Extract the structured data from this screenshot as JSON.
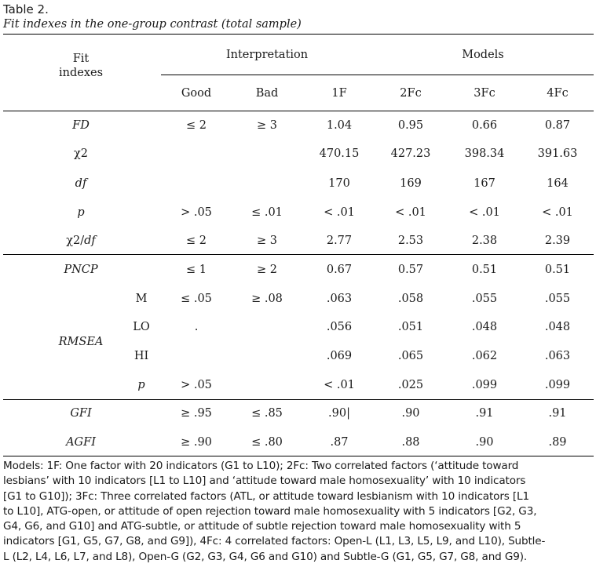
{
  "caption": {
    "title": "Table 2.",
    "subtitle": "Fit indexes in the one-group contrast (total sample)"
  },
  "header": {
    "fit_indexes_line1": "Fit",
    "fit_indexes_line2": "indexes",
    "interpretation": "Interpretation",
    "models": "Models",
    "good": "Good",
    "bad": "Bad",
    "m1": "1F",
    "m2": "2Fc",
    "m3": "3Fc",
    "m4": "4Fc"
  },
  "rows": {
    "fd": {
      "label": "FD",
      "good": "≤ 2",
      "bad": "≥ 3",
      "v1": "1.04",
      "v2": "0.95",
      "v3": "0.66",
      "v4": "0.87"
    },
    "chi2": {
      "label": "χ2",
      "good": "",
      "bad": "",
      "v1": "470.15",
      "v2": "427.23",
      "v3": "398.34",
      "v4": "391.63"
    },
    "df": {
      "label": "df",
      "good": "",
      "bad": "",
      "v1": "170",
      "v2": "169",
      "v3": "167",
      "v4": "164"
    },
    "p": {
      "label": "p",
      "good": "> .05",
      "bad": "≤ .01",
      "v1": "< .01",
      "v2": "< .01",
      "v3": "< .01",
      "v4": "< .01"
    },
    "chi2df": {
      "label_a": "χ2/",
      "label_b": "df",
      "good": "≤ 2",
      "bad": "≥ 3",
      "v1": "2.77",
      "v2": "2.53",
      "v3": "2.38",
      "v4": "2.39"
    },
    "pncp": {
      "label": "PNCP",
      "good": "≤ 1",
      "bad": "≥ 2",
      "v1": "0.67",
      "v2": "0.57",
      "v3": "0.51",
      "v4": "0.51"
    },
    "rmsea_label": "RMSEA",
    "rmsea_m": {
      "label": "M",
      "good": "≤ .05",
      "bad": "≥ .08",
      "v1": ".063",
      "v2": ".058",
      "v3": ".055",
      "v4": ".055"
    },
    "rmsea_lo": {
      "label": "LO",
      "good": ".",
      "bad": "",
      "v1": ".056",
      "v2": ".051",
      "v3": ".048",
      "v4": ".048"
    },
    "rmsea_hi": {
      "label": "HI",
      "good": "",
      "bad": "",
      "v1": ".069",
      "v2": ".065",
      "v3": ".062",
      "v4": ".063"
    },
    "rmsea_p": {
      "label": "p",
      "good": "> .05",
      "bad": "",
      "v1": "< .01",
      "v2": ".025",
      "v3": ".099",
      "v4": ".099"
    },
    "gfi": {
      "label": "GFI",
      "good": "≥ .95",
      "bad": "≤ .85",
      "v1": ".90|",
      "v2": ".90",
      "v3": ".91",
      "v4": ".91"
    },
    "agfi": {
      "label": "AGFI",
      "good": "≥ .90",
      "bad": "≤ .80",
      "v1": ".87",
      "v2": ".88",
      "v3": ".90",
      "v4": ".89"
    }
  },
  "notes": {
    "line1": "Models: 1F: One factor with 20 indicators (G1 to L10); 2Fc: Two correlated factors (‘attitude toward",
    "line2": "lesbians’ with 10 indicators [L1 to L10] and ‘attitude toward male homosexuality’ with 10 indicators",
    "line3": "[G1 to G10]); 3Fc: Three correlated factors (ATL, or attitude toward lesbianism with 10 indicators [L1",
    "line4": "to L10], ATG-open, or attitude of open rejection toward male homosexuality with 5 indicators [G2, G3,",
    "line5": "G4, G6, and G10] and ATG-subtle, or attitude of subtle rejection toward male homosexuality with 5",
    "line6": "indicators [G1, G5, G7, G8, and G9]), 4Fc: 4 correlated factors: Open-L (L1, L3, L5, L9, and L10), Subtle-",
    "line7": "L (L2, L4, L6, L7, and L8), Open-G (G2, G3, G4, G6 and G10) and Subtle-G (G1, G5, G7, G8, and G9)."
  }
}
